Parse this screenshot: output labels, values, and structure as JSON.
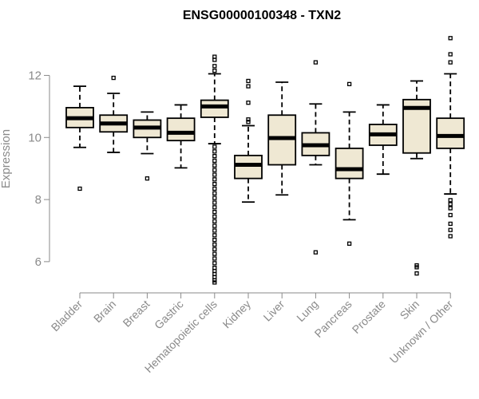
{
  "chart_data": {
    "type": "boxplot",
    "title": "ENSG00000100348 - TXN2",
    "xlabel": "",
    "ylabel": "Expression",
    "ylim": [
      5.2,
      13.4
    ],
    "yticks": [
      6,
      8,
      10,
      12
    ],
    "grid": false,
    "box_fill": "#efe8d3",
    "box_stroke": "#000000",
    "axis_color": "#8a8a8a",
    "categories": [
      "Bladder",
      "Brain",
      "Breast",
      "Gastric",
      "Hematopoietic cells",
      "Kidney",
      "Liver",
      "Lung",
      "Pancreas",
      "Prostate",
      "Skin",
      "Unknown / Other"
    ],
    "boxes": [
      {
        "name": "Bladder",
        "whisker_low": 9.68,
        "q1": 10.32,
        "median": 10.62,
        "q3": 10.96,
        "whisker_high": 11.65,
        "outliers": [
          8.35
        ]
      },
      {
        "name": "Brain",
        "whisker_low": 9.52,
        "q1": 10.18,
        "median": 10.45,
        "q3": 10.72,
        "whisker_high": 11.42,
        "outliers": [
          11.92
        ]
      },
      {
        "name": "Breast",
        "whisker_low": 9.48,
        "q1": 10.0,
        "median": 10.32,
        "q3": 10.56,
        "whisker_high": 10.82,
        "outliers": [
          8.68
        ]
      },
      {
        "name": "Gastric",
        "whisker_low": 9.02,
        "q1": 9.9,
        "median": 10.15,
        "q3": 10.62,
        "whisker_high": 11.05,
        "outliers": []
      },
      {
        "name": "Hematopoietic cells",
        "whisker_low": 9.8,
        "q1": 10.65,
        "median": 11.0,
        "q3": 11.2,
        "whisker_high": 12.05,
        "outliers": [
          12.6,
          12.5,
          12.3,
          12.15,
          9.7,
          9.55,
          9.4,
          9.25,
          9.1,
          8.95,
          8.8,
          8.65,
          8.5,
          8.35,
          8.2,
          8.05,
          7.9,
          7.75,
          7.6,
          7.45,
          7.3,
          7.15,
          7.0,
          6.85,
          6.7,
          6.55,
          6.4,
          6.25,
          6.1,
          5.95,
          5.8,
          5.7,
          5.6,
          5.5,
          5.4,
          5.33
        ]
      },
      {
        "name": "Kidney",
        "whisker_low": 7.92,
        "q1": 8.68,
        "median": 9.12,
        "q3": 9.42,
        "whisker_high": 10.38,
        "outliers": [
          11.82,
          11.65,
          11.12,
          10.58,
          10.5
        ]
      },
      {
        "name": "Liver",
        "whisker_low": 8.15,
        "q1": 9.12,
        "median": 9.98,
        "q3": 10.72,
        "whisker_high": 11.78,
        "outliers": []
      },
      {
        "name": "Lung",
        "whisker_low": 9.12,
        "q1": 9.42,
        "median": 9.75,
        "q3": 10.15,
        "whisker_high": 11.08,
        "outliers": [
          12.42,
          6.3
        ]
      },
      {
        "name": "Pancreas",
        "whisker_low": 7.35,
        "q1": 8.68,
        "median": 8.98,
        "q3": 9.65,
        "whisker_high": 10.82,
        "outliers": [
          11.72,
          6.58
        ]
      },
      {
        "name": "Prostate",
        "whisker_low": 8.82,
        "q1": 9.75,
        "median": 10.1,
        "q3": 10.42,
        "whisker_high": 11.05,
        "outliers": []
      },
      {
        "name": "Skin",
        "whisker_low": 9.32,
        "q1": 9.5,
        "median": 10.95,
        "q3": 11.22,
        "whisker_high": 11.82,
        "outliers": [
          5.88,
          5.82,
          5.62
        ]
      },
      {
        "name": "Unknown / Other",
        "whisker_low": 8.18,
        "q1": 9.65,
        "median": 10.05,
        "q3": 10.62,
        "whisker_high": 12.05,
        "outliers": [
          13.2,
          12.68,
          12.42,
          7.98,
          7.85,
          7.72,
          7.5,
          7.22,
          7.02,
          6.82
        ]
      }
    ]
  }
}
